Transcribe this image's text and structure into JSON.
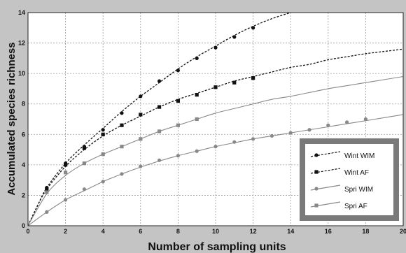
{
  "chart_data": {
    "type": "line",
    "title": "",
    "xlabel": "Number of sampling units",
    "ylabel": "Accumulated species richness",
    "xlim": [
      0,
      20
    ],
    "ylim": [
      0,
      14
    ],
    "x_ticks": [
      0,
      2,
      4,
      6,
      8,
      10,
      12,
      14,
      16,
      18,
      20
    ],
    "y_ticks": [
      0,
      2,
      4,
      6,
      8,
      10,
      12,
      14
    ],
    "grid": true,
    "legend_position": "bottom-right",
    "series": [
      {
        "name": "Wint WIM",
        "color": "#111111",
        "line_style": "dashed",
        "marker": "circle",
        "points": [
          [
            1,
            2.5
          ],
          [
            2,
            4.1
          ],
          [
            3,
            5.2
          ],
          [
            4,
            6.3
          ],
          [
            5,
            7.4
          ],
          [
            6,
            8.5
          ],
          [
            7,
            9.5
          ],
          [
            8,
            10.2
          ],
          [
            9,
            11.0
          ],
          [
            10,
            11.7
          ],
          [
            11,
            12.4
          ],
          [
            12,
            13.0
          ]
        ],
        "curve": [
          [
            0,
            0
          ],
          [
            0.5,
            1.3
          ],
          [
            1,
            2.5
          ],
          [
            2,
            4.1
          ],
          [
            3,
            5.3
          ],
          [
            4,
            6.4
          ],
          [
            5,
            7.5
          ],
          [
            6,
            8.5
          ],
          [
            7,
            9.4
          ],
          [
            8,
            10.3
          ],
          [
            9,
            11.1
          ],
          [
            10,
            11.8
          ],
          [
            11,
            12.5
          ],
          [
            12,
            13.1
          ],
          [
            13,
            13.6
          ],
          [
            14,
            14.0
          ]
        ]
      },
      {
        "name": "Wint AF",
        "color": "#111111",
        "line_style": "dashed",
        "marker": "square",
        "points": [
          [
            1,
            2.4
          ],
          [
            2,
            4.0
          ],
          [
            3,
            5.1
          ],
          [
            4,
            6.0
          ],
          [
            5,
            6.6
          ],
          [
            6,
            7.3
          ],
          [
            7,
            7.8
          ],
          [
            8,
            8.2
          ],
          [
            9,
            8.6
          ],
          [
            10,
            9.1
          ],
          [
            11,
            9.4
          ],
          [
            12,
            9.7
          ]
        ],
        "curve": [
          [
            0,
            0
          ],
          [
            0.5,
            1.3
          ],
          [
            1,
            2.4
          ],
          [
            2,
            3.9
          ],
          [
            3,
            5.0
          ],
          [
            4,
            5.9
          ],
          [
            5,
            6.6
          ],
          [
            6,
            7.2
          ],
          [
            7,
            7.8
          ],
          [
            8,
            8.3
          ],
          [
            9,
            8.7
          ],
          [
            10,
            9.1
          ],
          [
            11,
            9.5
          ],
          [
            12,
            9.8
          ],
          [
            13,
            10.1
          ],
          [
            14,
            10.4
          ],
          [
            15,
            10.6
          ],
          [
            16,
            10.9
          ],
          [
            17,
            11.1
          ],
          [
            18,
            11.3
          ],
          [
            19,
            11.45
          ],
          [
            20,
            11.6
          ]
        ]
      },
      {
        "name": "Spri WIM",
        "color": "#888888",
        "line_style": "solid",
        "marker": "circle",
        "points": [
          [
            1,
            0.9
          ],
          [
            2,
            1.7
          ],
          [
            3,
            2.4
          ],
          [
            4,
            2.9
          ],
          [
            5,
            3.4
          ],
          [
            6,
            3.9
          ],
          [
            7,
            4.3
          ],
          [
            8,
            4.6
          ],
          [
            9,
            4.9
          ],
          [
            10,
            5.2
          ],
          [
            11,
            5.5
          ],
          [
            12,
            5.7
          ],
          [
            13,
            5.9
          ],
          [
            14,
            6.1
          ],
          [
            15,
            6.3
          ],
          [
            16,
            6.6
          ],
          [
            17,
            6.8
          ],
          [
            18,
            7.0
          ]
        ],
        "curve": [
          [
            0,
            0
          ],
          [
            1,
            0.9
          ],
          [
            2,
            1.7
          ],
          [
            3,
            2.3
          ],
          [
            4,
            2.9
          ],
          [
            5,
            3.4
          ],
          [
            6,
            3.85
          ],
          [
            7,
            4.25
          ],
          [
            8,
            4.6
          ],
          [
            9,
            4.9
          ],
          [
            10,
            5.2
          ],
          [
            11,
            5.45
          ],
          [
            12,
            5.7
          ],
          [
            13,
            5.9
          ],
          [
            14,
            6.1
          ],
          [
            15,
            6.3
          ],
          [
            16,
            6.5
          ],
          [
            17,
            6.7
          ],
          [
            18,
            6.9
          ],
          [
            19,
            7.1
          ],
          [
            20,
            7.3
          ]
        ]
      },
      {
        "name": "Spri AF",
        "color": "#888888",
        "line_style": "solid",
        "marker": "square",
        "points": [
          [
            1,
            2.2
          ],
          [
            2,
            3.5
          ],
          [
            3,
            4.1
          ],
          [
            4,
            4.7
          ],
          [
            5,
            5.2
          ],
          [
            6,
            5.7
          ],
          [
            7,
            6.2
          ],
          [
            8,
            6.6
          ],
          [
            9,
            7.0
          ]
        ],
        "curve": [
          [
            0,
            0
          ],
          [
            1,
            2.1
          ],
          [
            2,
            3.3
          ],
          [
            3,
            4.1
          ],
          [
            4,
            4.7
          ],
          [
            5,
            5.2
          ],
          [
            6,
            5.7
          ],
          [
            7,
            6.2
          ],
          [
            8,
            6.6
          ],
          [
            9,
            7.0
          ],
          [
            10,
            7.4
          ],
          [
            11,
            7.7
          ],
          [
            12,
            8.0
          ],
          [
            13,
            8.3
          ],
          [
            14,
            8.5
          ],
          [
            15,
            8.75
          ],
          [
            16,
            9.0
          ],
          [
            17,
            9.2
          ],
          [
            18,
            9.4
          ],
          [
            19,
            9.6
          ],
          [
            20,
            9.8
          ]
        ]
      }
    ]
  }
}
